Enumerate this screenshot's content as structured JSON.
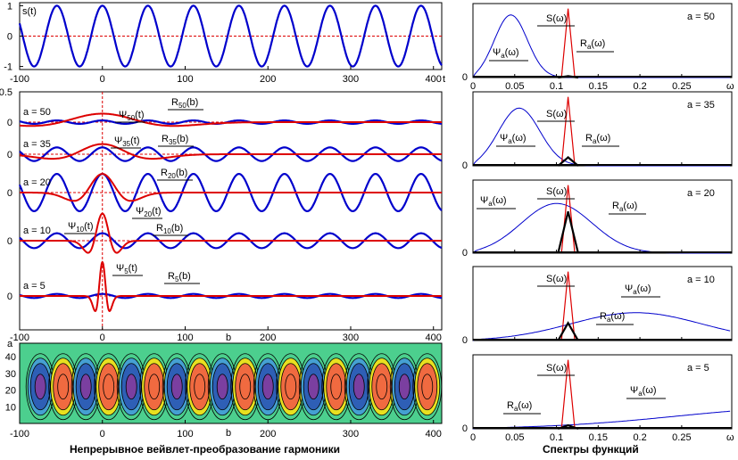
{
  "captions": {
    "left": "Непрерывное вейвлет-преобразование гармоники",
    "right": "Спектры функций"
  },
  "colors": {
    "signal": "#0000cc",
    "wavelet": "#dd0000",
    "spectrum_s": "#dd0000",
    "spectrum_psi": "#0000cc",
    "spectrum_r": "#000000",
    "baseline_dashed": "#dd0000",
    "scalogram": [
      "#7b3fa0",
      "#2e5fb6",
      "#45a0d2",
      "#4ccf8e",
      "#e8e020",
      "#f06a40"
    ]
  },
  "chart_data": [
    {
      "id": "signal",
      "type": "line",
      "title": "",
      "curve_label": "s(t)",
      "xlabel": "t",
      "xlim": [
        -100,
        410
      ],
      "ylim": [
        -1.1,
        1.1
      ],
      "xticks": [
        -100,
        0,
        100,
        200,
        300,
        400
      ],
      "yticks": [
        -1,
        0,
        1
      ],
      "series": [
        {
          "kind": "sine",
          "amplitude": 1,
          "period": 55,
          "phase_deg": 90,
          "color_key": "signal"
        }
      ],
      "dashed_zero_line": true
    },
    {
      "id": "wavelet_transform",
      "type": "line",
      "xlabel": "b",
      "xlim": [
        -100,
        410
      ],
      "xticks": [
        -100,
        0,
        100,
        200,
        300,
        400
      ],
      "top_tick_label": "0.5",
      "rows": [
        {
          "scale_label": "a = 50",
          "a": 50,
          "psi_label": "Ψ50(t)",
          "r_label": "R50(b)",
          "r_amplitude": 0.05,
          "psi_amplitude": 0.25,
          "baseline_label": "0"
        },
        {
          "scale_label": "a = 35",
          "a": 35,
          "psi_label": "Ψ35(t)",
          "r_label": "R35(b)",
          "r_amplitude": 0.2,
          "psi_amplitude": 0.3,
          "baseline_label": "0"
        },
        {
          "scale_label": "a = 20",
          "a": 20,
          "psi_label": "Ψ20(t)",
          "r_label": "R20(b)",
          "r_amplitude": 0.55,
          "psi_amplitude": 0.55,
          "baseline_label": "0"
        },
        {
          "scale_label": "a = 10",
          "a": 10,
          "psi_label": "Ψ10(t)",
          "r_label": "R10(b)",
          "r_amplitude": 0.22,
          "psi_amplitude": 0.8,
          "baseline_label": "0"
        },
        {
          "scale_label": "a = 5",
          "a": 5,
          "psi_label": "Ψ5(t)",
          "r_label": "R5(b)",
          "r_amplitude": 0.06,
          "psi_amplitude": 1.0,
          "baseline_label": "0"
        }
      ],
      "r_period": 55
    },
    {
      "id": "scalogram",
      "type": "heatmap",
      "xlabel": "b",
      "ylabel": "a",
      "xlim": [
        -100,
        410
      ],
      "ylim": [
        0,
        48
      ],
      "xticks": [
        -100,
        0,
        100,
        200,
        300,
        400
      ],
      "yticks": [
        10,
        20,
        30,
        40
      ],
      "band_center_a": 22,
      "period": 55,
      "levels": 6
    },
    {
      "id": "spectra",
      "type": "line",
      "xlabel": "ω",
      "xlim": [
        0,
        0.31
      ],
      "xticks": [
        0,
        0.05,
        0.1,
        0.15,
        0.2,
        0.25
      ],
      "xtick_labels": [
        "0",
        "0.05",
        "0.1",
        "0.15",
        "0.2",
        "0.25"
      ],
      "s_peak_omega": 0.114,
      "panels": [
        {
          "scale_label": "a = 50",
          "psi_peak_omega": 0.045,
          "psi_width": 0.028,
          "psi_height": 0.93,
          "r_height": 0.02,
          "labels": {
            "s": "S(ω)",
            "psi": "Ψa(ω)",
            "r": "Ra(ω)"
          },
          "tick_labels": true
        },
        {
          "scale_label": "a = 35",
          "psi_peak_omega": 0.055,
          "psi_width": 0.035,
          "psi_height": 0.85,
          "r_height": 0.12,
          "labels": {
            "s": "S(ω)",
            "psi": "Ψa(ω)",
            "r": "Ra(ω)"
          },
          "tick_labels": false
        },
        {
          "scale_label": "a = 20",
          "psi_peak_omega": 0.1,
          "psi_width": 0.06,
          "psi_height": 0.73,
          "r_height": 0.6,
          "labels": {
            "s": "S(ω)",
            "psi": "Ψa(ω)",
            "r": "Ra(ω)"
          },
          "tick_labels": false
        },
        {
          "scale_label": "a = 10",
          "psi_peak_omega": 0.195,
          "psi_width": 0.11,
          "psi_height": 0.4,
          "r_height": 0.25,
          "labels": {
            "s": "S(ω)",
            "psi": "Ψa(ω)",
            "r": "Ra(ω)"
          },
          "tick_labels": false
        },
        {
          "scale_label": "a = 5",
          "psi_peak_omega": 0.4,
          "psi_width": 0.22,
          "psi_height": 0.3,
          "r_height": 0.05,
          "labels": {
            "s": "S(ω)",
            "psi": "Ψa(ω)",
            "r": "Ra(ω)"
          },
          "tick_labels": true
        }
      ]
    }
  ]
}
